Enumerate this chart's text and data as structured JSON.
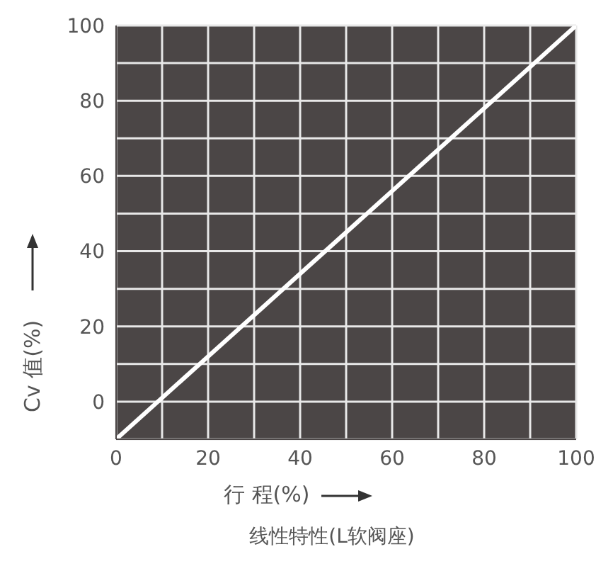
{
  "chart_data": {
    "type": "line",
    "title": "线性特性(L软阀座)",
    "xlabel": "行 程(%)",
    "ylabel": "Cv 值(%)",
    "x": [
      0,
      100
    ],
    "series": [
      {
        "color": "#ffffff",
        "values": [
          -10,
          100
        ]
      }
    ],
    "xlim": [
      0,
      100
    ],
    "xticks": [
      0,
      {
        "value": 10,
        "label": null
      },
      20,
      {
        "value": 30,
        "label": null
      },
      40,
      {
        "value": 50,
        "label": null
      },
      60,
      {
        "value": 70,
        "label": null
      },
      80,
      {
        "value": 90,
        "label": null
      },
      100
    ],
    "ylim": [
      -10,
      100
    ],
    "yticks": [
      {
        "value": -10,
        "label": null
      },
      0,
      {
        "value": 10,
        "label": null
      },
      20,
      {
        "value": 30,
        "label": null
      },
      40,
      {
        "value": 50,
        "label": null
      },
      60,
      {
        "value": 70,
        "label": null
      },
      80,
      {
        "value": 90,
        "label": null
      },
      100
    ],
    "grid": true,
    "marker": "none",
    "line_style": "solid"
  }
}
